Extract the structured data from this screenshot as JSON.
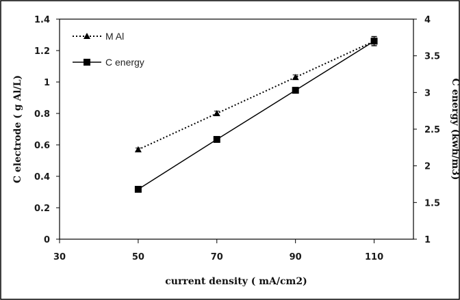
{
  "chart_data": {
    "type": "line",
    "xlabel": "current density ( mA/cm2)",
    "ylabel": "C electrode ( g Al/L)",
    "y2label": "C energy  (kwh/m3)",
    "x_ticks": [
      "30",
      "50",
      "70",
      "90",
      "110"
    ],
    "y_ticks": [
      "0",
      "0.2",
      "0.4",
      "0.6",
      "0.8",
      "1",
      "1.2",
      "1.4"
    ],
    "y2_ticks": [
      "1",
      "1.5",
      "2",
      "2.5",
      "3",
      "3.5",
      "4"
    ],
    "xlim": [
      30,
      120
    ],
    "ylim": [
      0,
      1.4
    ],
    "y2lim": [
      1,
      4
    ],
    "grid": false,
    "legend_position": "top-left",
    "series": [
      {
        "name": "M Al",
        "axis": "left",
        "style": "dotted",
        "marker": "triangle",
        "color": "#000000",
        "x": [
          50,
          70,
          90,
          110
        ],
        "y": [
          0.57,
          0.8,
          1.03,
          1.26
        ],
        "error": [
          0.01,
          0.015,
          0.015,
          0.03
        ]
      },
      {
        "name": "C energy",
        "axis": "right",
        "style": "solid",
        "marker": "square",
        "color": "#000000",
        "x": [
          50,
          70,
          90,
          110
        ],
        "y": [
          1.68,
          2.36,
          3.03,
          3.7
        ],
        "error": [
          0,
          0,
          0,
          0.06
        ]
      }
    ]
  }
}
